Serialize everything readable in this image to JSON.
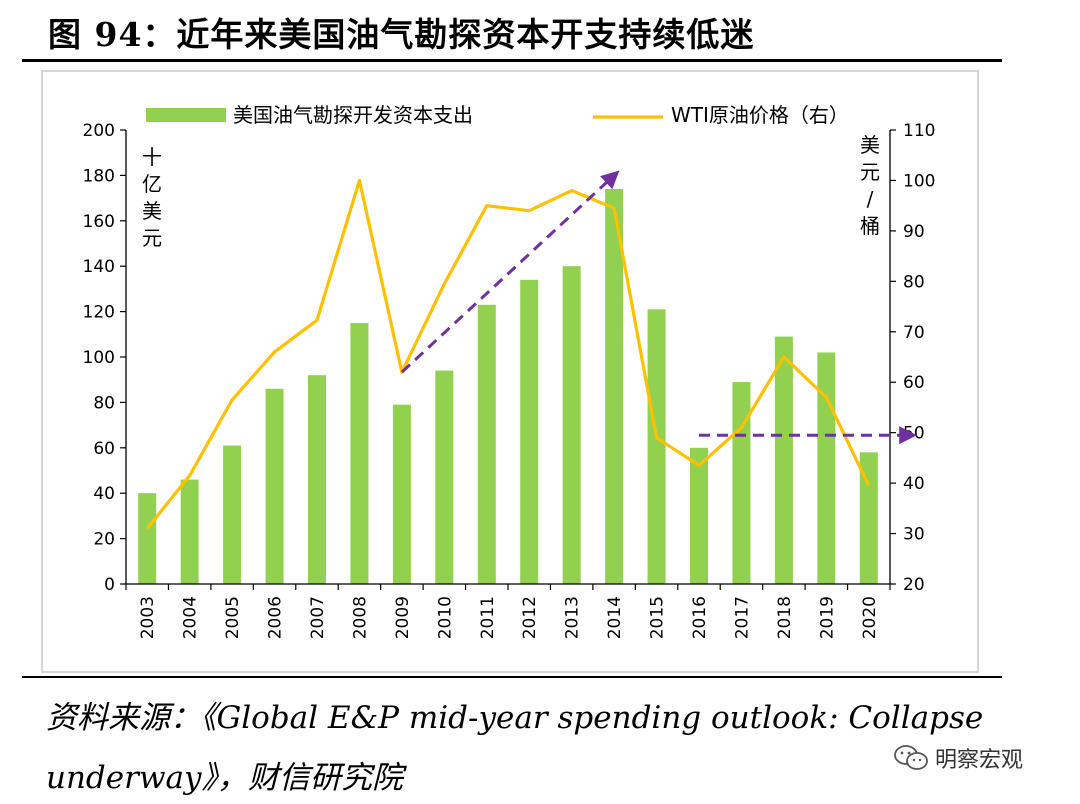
{
  "figure": {
    "title": "图 94：近年来美国油气勘探资本开支持续低迷"
  },
  "source": {
    "line1": "资料来源：《Global E&P mid-year spending outlook: Collapse",
    "line2": "underway》，财信研究院"
  },
  "watermark": {
    "text": "明察宏观",
    "icon": "wechat-icon"
  },
  "chart_data": {
    "type": "bar",
    "categories": [
      "2003",
      "2004",
      "2005",
      "2006",
      "2007",
      "2008",
      "2009",
      "2010",
      "2011",
      "2012",
      "2013",
      "2014",
      "2015",
      "2016",
      "2017",
      "2018",
      "2019",
      "2020"
    ],
    "series": [
      {
        "name": "美国油气勘探开发资本支出",
        "type": "bar",
        "axis": "left",
        "color": "#92d050",
        "values": [
          40,
          46,
          61,
          86,
          92,
          115,
          79,
          94,
          123,
          134,
          140,
          174,
          121,
          60,
          89,
          109,
          102,
          58
        ]
      },
      {
        "name": "WTI原油价格（右）",
        "type": "line",
        "axis": "right",
        "color": "#ffc000",
        "values": [
          31,
          41.5,
          56.5,
          66,
          72.3,
          100,
          62,
          79.5,
          95,
          94,
          98,
          94.5,
          49,
          43.5,
          51,
          65,
          57,
          39.5
        ]
      }
    ],
    "y_left": {
      "unit": "十亿美元",
      "ylim": [
        0,
        200
      ],
      "ticks": [
        0,
        20,
        40,
        60,
        80,
        100,
        120,
        140,
        160,
        180,
        200
      ]
    },
    "y_right": {
      "unit": "美元/桶",
      "ylim": [
        20,
        110
      ],
      "ticks": [
        20,
        30,
        40,
        50,
        60,
        70,
        80,
        90,
        100,
        110
      ]
    },
    "annotations": [
      {
        "type": "dashed-arrow",
        "color": "#7030a0",
        "from": {
          "x": "2009",
          "y_right": 62
        },
        "to": {
          "x": "2014",
          "y_right": 101
        }
      },
      {
        "type": "dashed-arrow",
        "color": "#7030a0",
        "from": {
          "x": "2016",
          "y_right": 49.5
        },
        "to": {
          "x": "2020",
          "y_right": 49.5
        }
      }
    ],
    "legend": "top",
    "grid": false
  }
}
